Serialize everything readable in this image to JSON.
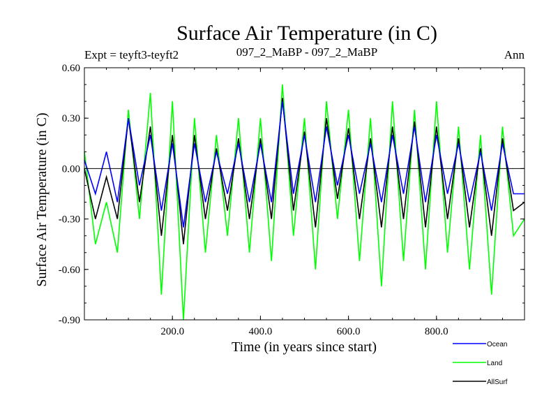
{
  "chart_data": {
    "type": "line",
    "title": "Surface Air Temperature (in C)",
    "subtitle_left": "Expt = teyft3-teyft2",
    "subtitle_center": "097_2_MaBP - 097_2_MaBP",
    "subtitle_right": "Ann",
    "xlabel": "Time (in years since start)",
    "ylabel": "Surface Air Temperature (in C)",
    "xlim": [
      0,
      1000
    ],
    "ylim": [
      -0.9,
      0.6
    ],
    "x_ticks": [
      200,
      400,
      600,
      800
    ],
    "x_tick_labels": [
      "200.0",
      "400.0",
      "600.0",
      "800.0"
    ],
    "y_ticks": [
      0.6,
      0.3,
      0.0,
      -0.3,
      -0.6,
      -0.9
    ],
    "y_tick_labels": [
      "0.60",
      "0.30",
      "0.00",
      "-0.30",
      "-0.60",
      "-0.90"
    ],
    "zero_line": 0.0,
    "x": [
      0,
      25,
      50,
      75,
      100,
      125,
      150,
      175,
      200,
      225,
      250,
      275,
      300,
      325,
      350,
      375,
      400,
      425,
      450,
      475,
      500,
      525,
      550,
      575,
      600,
      625,
      650,
      675,
      700,
      725,
      750,
      775,
      800,
      825,
      850,
      875,
      900,
      925,
      950,
      975,
      1000
    ],
    "series": [
      {
        "name": "Land",
        "color": "#00ff00",
        "values": [
          0.1,
          -0.45,
          -0.2,
          -0.5,
          0.35,
          -0.3,
          0.45,
          -0.75,
          0.4,
          -0.9,
          0.3,
          -0.5,
          0.2,
          -0.4,
          0.3,
          -0.5,
          0.3,
          -0.55,
          0.5,
          -0.4,
          0.3,
          -0.6,
          0.4,
          -0.3,
          0.35,
          -0.55,
          0.3,
          -0.7,
          0.4,
          -0.55,
          0.35,
          -0.6,
          0.4,
          -0.5,
          0.25,
          -0.6,
          0.2,
          -0.75,
          0.25,
          -0.4,
          -0.3
        ]
      },
      {
        "name": "Ocean",
        "color": "#0000ff",
        "values": [
          0.05,
          -0.15,
          0.1,
          -0.2,
          0.3,
          -0.1,
          0.2,
          -0.25,
          0.15,
          -0.35,
          0.15,
          -0.2,
          0.1,
          -0.15,
          0.15,
          -0.2,
          0.15,
          -0.2,
          0.4,
          -0.15,
          0.2,
          -0.2,
          0.25,
          -0.1,
          0.2,
          -0.15,
          0.15,
          -0.2,
          0.2,
          -0.15,
          0.25,
          -0.2,
          0.2,
          -0.15,
          0.15,
          -0.2,
          0.1,
          -0.25,
          0.15,
          -0.15,
          -0.15
        ]
      },
      {
        "name": "AllSurf",
        "color": "#000000",
        "values": [
          0.0,
          -0.3,
          -0.05,
          -0.3,
          0.3,
          -0.2,
          0.25,
          -0.4,
          0.2,
          -0.45,
          0.2,
          -0.3,
          0.12,
          -0.25,
          0.18,
          -0.3,
          0.18,
          -0.3,
          0.42,
          -0.25,
          0.22,
          -0.35,
          0.3,
          -0.18,
          0.24,
          -0.3,
          0.18,
          -0.35,
          0.25,
          -0.3,
          0.28,
          -0.35,
          0.25,
          -0.3,
          0.18,
          -0.35,
          0.12,
          -0.4,
          0.18,
          -0.25,
          -0.2
        ]
      }
    ],
    "legend": [
      "Ocean",
      "Land",
      "AllSurf"
    ],
    "legend_position": "bottom-right"
  }
}
